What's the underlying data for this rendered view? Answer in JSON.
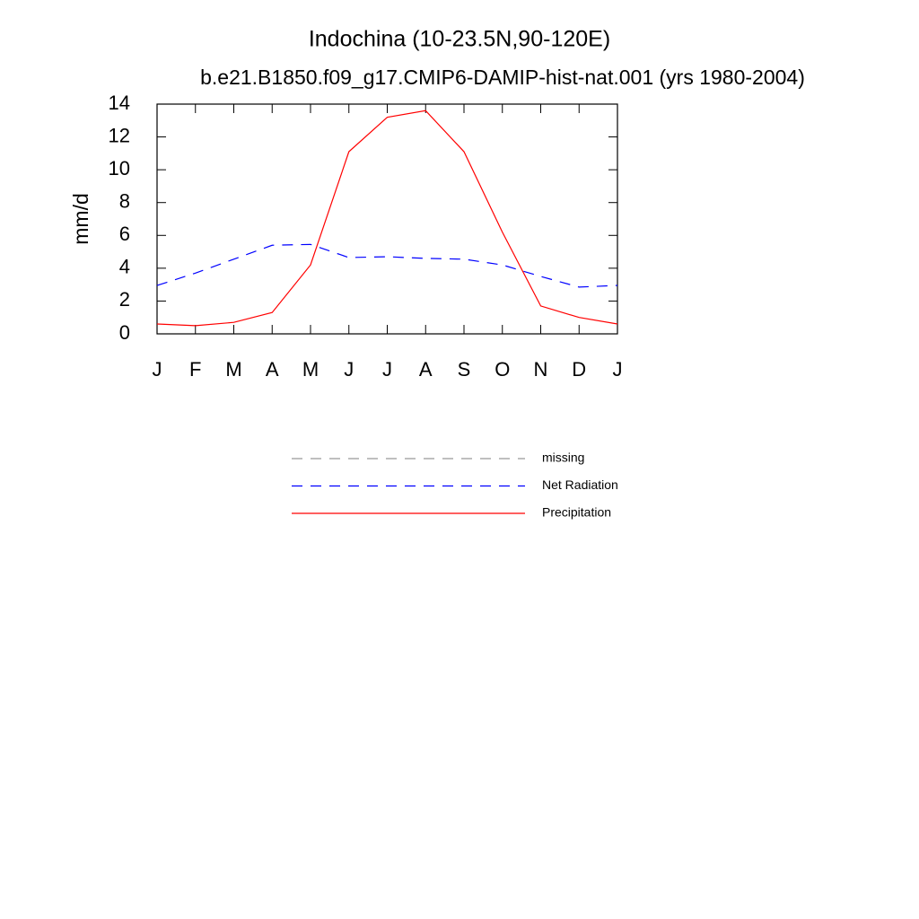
{
  "chart_data": {
    "type": "line",
    "title": "Indochina (10-23.5N,90-120E)",
    "subtitle": "b.e21.B1850.f09_g17.CMIP6-DAMIP-hist-nat.001 (yrs 1980-2004)",
    "y_label": "mm/d",
    "categories": [
      "J",
      "F",
      "M",
      "A",
      "M",
      "J",
      "J",
      "A",
      "S",
      "O",
      "N",
      "D",
      "J"
    ],
    "series": [
      {
        "name": "missing",
        "color": "#999999",
        "line_style": "dashed",
        "values": [
          null,
          null,
          null,
          null,
          null,
          null,
          null,
          null,
          null,
          null,
          null,
          null,
          null
        ]
      },
      {
        "name": "Net Radiation",
        "color": "#0000ff",
        "line_style": "dashed",
        "values": [
          2.95,
          3.7,
          4.55,
          5.4,
          5.45,
          4.65,
          4.7,
          4.6,
          4.55,
          4.2,
          3.5,
          2.85,
          2.95
        ]
      },
      {
        "name": "Precipitation",
        "color": "#ff0000",
        "line_style": "solid",
        "values": [
          0.6,
          0.5,
          0.7,
          1.3,
          4.2,
          11.1,
          13.2,
          13.6,
          11.1,
          6.2,
          1.7,
          1.0,
          0.6
        ]
      }
    ],
    "ylim": [
      0,
      14
    ],
    "yticks": [
      0,
      2,
      4,
      6,
      8,
      10,
      12,
      14
    ],
    "grid": false
  }
}
